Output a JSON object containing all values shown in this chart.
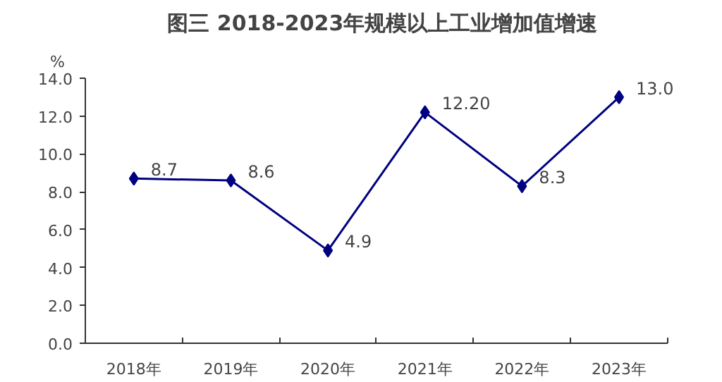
{
  "chart_data": {
    "type": "line",
    "title": "图三    2018-2023年规模以上工业增加值增速",
    "ylabel": "%",
    "categories": [
      "2018年",
      "2019年",
      "2020年",
      "2021年",
      "2022年",
      "2023年"
    ],
    "series": [
      {
        "color": "#000080",
        "values": [
          8.7,
          8.6,
          4.9,
          12.2,
          8.3,
          13.0
        ],
        "value_labels": [
          "8.7",
          "8.6",
          "4.9",
          "12.20",
          "8.3",
          "13.0"
        ]
      }
    ],
    "ylim": [
      0,
      14
    ],
    "yticks": [
      {
        "value": 0,
        "label": "0.0"
      },
      {
        "value": 2,
        "label": "2.0"
      },
      {
        "value": 4,
        "label": "4.0"
      },
      {
        "value": 6,
        "label": "6.0"
      },
      {
        "value": 8,
        "label": "8.0"
      },
      {
        "value": 10,
        "label": "10.0"
      },
      {
        "value": 12,
        "label": "12.0"
      },
      {
        "value": 14,
        "label": "14.0"
      }
    ],
    "grid": false,
    "marker": "diamond",
    "line_style": "solid"
  }
}
